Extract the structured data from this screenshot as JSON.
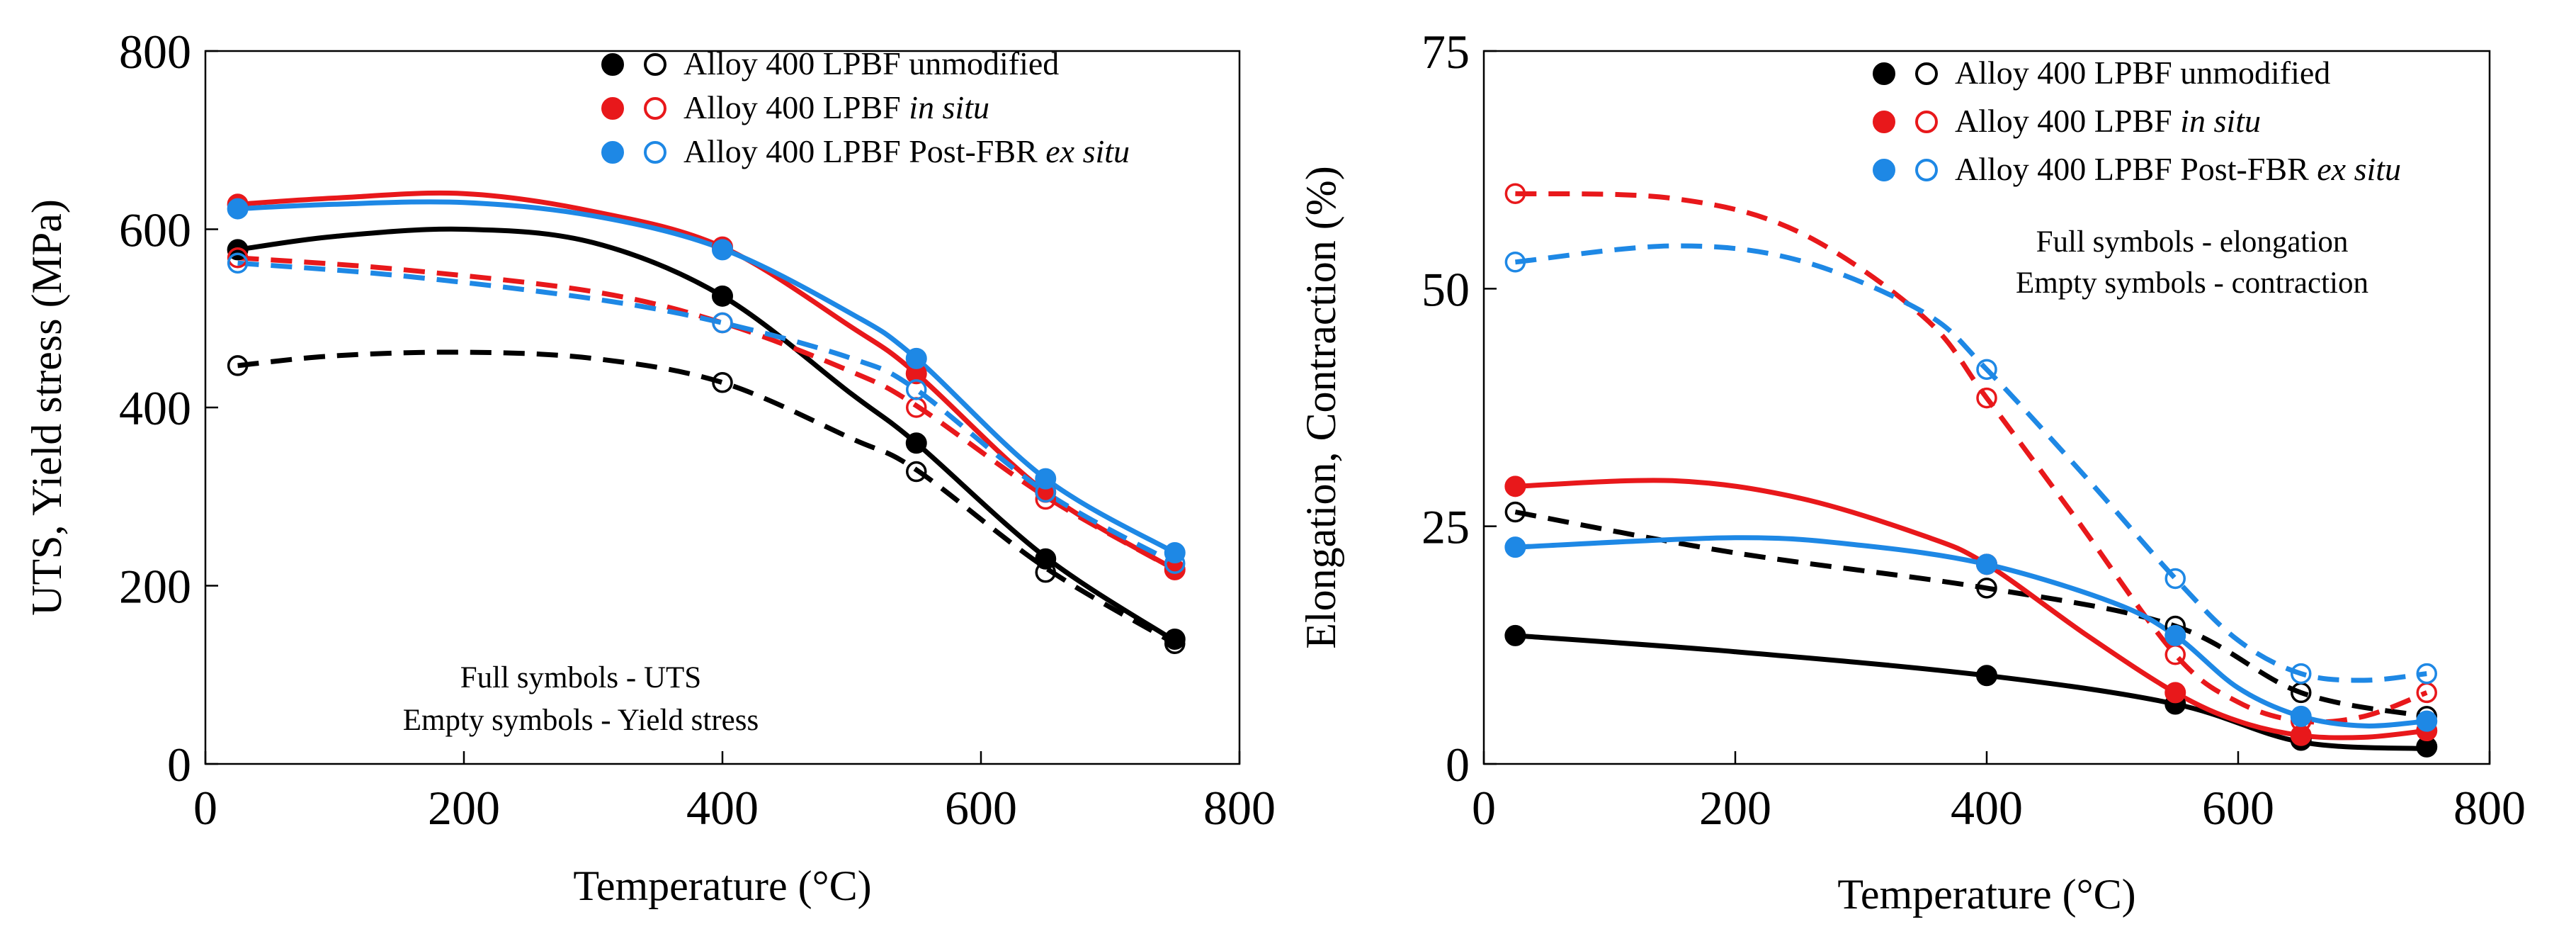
{
  "chart_data": [
    {
      "type": "line",
      "id": "strength",
      "xlabel": "Temperature (°C)",
      "ylabel": "UTS, Yield stress (MPa)",
      "xlim": [
        0,
        800
      ],
      "ylim": [
        0,
        800
      ],
      "xticks": [
        "0",
        "200",
        "400",
        "600",
        "800"
      ],
      "yticks": [
        "0",
        "200",
        "400",
        "600",
        "800"
      ],
      "xtick_values": [
        0,
        200,
        400,
        600,
        800
      ],
      "ytick_values": [
        0,
        200,
        400,
        600,
        800
      ],
      "legend": [
        {
          "text": "Alloy 400 LPBF unmodified",
          "italic": "",
          "color": "#000000"
        },
        {
          "text": "Alloy 400 LPBF ",
          "italic": "in situ",
          "color": "#e8181b"
        },
        {
          "text": "Alloy 400 LPBF Post-FBR ",
          "italic": "ex situ",
          "color": "#1e88e5"
        }
      ],
      "notes": [
        "Full symbols - UTS",
        "Empty symbols - Yield stress"
      ],
      "series": [
        {
          "name": "unmodified UTS",
          "color": "#000000",
          "filled": true,
          "dashed": false,
          "x": [
            25,
            400,
            550,
            650,
            750
          ],
          "y": [
            577,
            525,
            360,
            230,
            140
          ],
          "curve": [
            [
              25,
              577
            ],
            [
              100,
              592
            ],
            [
              200,
              600
            ],
            [
              300,
              585
            ],
            [
              400,
              525
            ],
            [
              500,
              415
            ],
            [
              550,
              360
            ],
            [
              650,
              232
            ],
            [
              750,
              138
            ]
          ]
        },
        {
          "name": "unmodified Yield",
          "color": "#000000",
          "filled": false,
          "dashed": true,
          "x": [
            25,
            400,
            550,
            650,
            750
          ],
          "y": [
            447,
            428,
            328,
            215,
            135
          ],
          "curve": [
            [
              25,
              447
            ],
            [
              100,
              458
            ],
            [
              200,
              462
            ],
            [
              300,
              455
            ],
            [
              400,
              428
            ],
            [
              500,
              365
            ],
            [
              550,
              330
            ],
            [
              650,
              220
            ],
            [
              750,
              135
            ]
          ]
        },
        {
          "name": "in situ UTS",
          "color": "#e8181b",
          "filled": true,
          "dashed": false,
          "x": [
            25,
            400,
            550,
            650,
            750
          ],
          "y": [
            628,
            580,
            438,
            305,
            218
          ],
          "curve": [
            [
              25,
              628
            ],
            [
              100,
              635
            ],
            [
              200,
              640
            ],
            [
              300,
              620
            ],
            [
              400,
              580
            ],
            [
              500,
              490
            ],
            [
              550,
              438
            ],
            [
              650,
              305
            ],
            [
              750,
              218
            ]
          ]
        },
        {
          "name": "in situ Yield",
          "color": "#e8181b",
          "filled": false,
          "dashed": true,
          "x": [
            25,
            400,
            550,
            650,
            750
          ],
          "y": [
            568,
            495,
            400,
            297,
            218
          ],
          "curve": [
            [
              25,
              568
            ],
            [
              150,
              555
            ],
            [
              300,
              530
            ],
            [
              400,
              495
            ],
            [
              500,
              440
            ],
            [
              550,
              402
            ],
            [
              650,
              300
            ],
            [
              750,
              218
            ]
          ]
        },
        {
          "name": "ex situ UTS",
          "color": "#1e88e5",
          "filled": true,
          "dashed": false,
          "x": [
            25,
            400,
            550,
            650,
            750
          ],
          "y": [
            623,
            577,
            455,
            320,
            237
          ],
          "curve": [
            [
              25,
              623
            ],
            [
              100,
              628
            ],
            [
              200,
              630
            ],
            [
              300,
              615
            ],
            [
              400,
              578
            ],
            [
              500,
              505
            ],
            [
              550,
              455
            ],
            [
              650,
              320
            ],
            [
              750,
              237
            ]
          ]
        },
        {
          "name": "ex situ Yield",
          "color": "#1e88e5",
          "filled": false,
          "dashed": true,
          "x": [
            25,
            400,
            550,
            650,
            750
          ],
          "y": [
            562,
            495,
            420,
            305,
            225
          ],
          "curve": [
            [
              25,
              562
            ],
            [
              150,
              548
            ],
            [
              300,
              522
            ],
            [
              400,
              495
            ],
            [
              500,
              455
            ],
            [
              550,
              420
            ],
            [
              650,
              305
            ],
            [
              750,
              225
            ]
          ]
        }
      ]
    },
    {
      "type": "line",
      "id": "ductility",
      "xlabel": "Temperature (°C)",
      "ylabel": "Elongation, Contraction (%)",
      "xlim": [
        0,
        800
      ],
      "ylim": [
        0,
        75
      ],
      "xticks": [
        "0",
        "200",
        "400",
        "600",
        "800"
      ],
      "yticks": [
        "0",
        "25",
        "50",
        "75"
      ],
      "xtick_values": [
        0,
        200,
        400,
        600,
        800
      ],
      "ytick_values": [
        0,
        25,
        50,
        75
      ],
      "legend": [
        {
          "text": "Alloy 400 LPBF unmodified",
          "italic": "",
          "color": "#000000"
        },
        {
          "text": "Alloy 400 LPBF ",
          "italic": "in situ",
          "color": "#e8181b"
        },
        {
          "text": "Alloy 400 LPBF Post-FBR ",
          "italic": "ex situ",
          "color": "#1e88e5"
        }
      ],
      "notes": [
        "Full symbols - elongation",
        "Empty symbols - contraction"
      ],
      "series": [
        {
          "name": "unmodified elongation",
          "color": "#000000",
          "filled": true,
          "dashed": false,
          "x": [
            25,
            400,
            550,
            650,
            750
          ],
          "y": [
            13.5,
            9.3,
            6.3,
            2.5,
            1.8
          ],
          "curve": [
            [
              25,
              13.5
            ],
            [
              200,
              11.8
            ],
            [
              400,
              9.3
            ],
            [
              550,
              6.3
            ],
            [
              650,
              2.3
            ],
            [
              750,
              1.6
            ]
          ]
        },
        {
          "name": "unmodified contraction",
          "color": "#000000",
          "filled": false,
          "dashed": true,
          "x": [
            25,
            400,
            550,
            650,
            750
          ],
          "y": [
            26.5,
            18.5,
            14.5,
            7.5,
            5.0
          ],
          "curve": [
            [
              25,
              26.5
            ],
            [
              200,
              22.2
            ],
            [
              400,
              18.5
            ],
            [
              550,
              14.5
            ],
            [
              650,
              7.5
            ],
            [
              750,
              5.0
            ]
          ]
        },
        {
          "name": "in situ elongation",
          "color": "#e8181b",
          "filled": true,
          "dashed": false,
          "x": [
            25,
            400,
            550,
            650,
            750
          ],
          "y": [
            29.2,
            21.0,
            7.5,
            3.0,
            3.5
          ],
          "curve": [
            [
              25,
              29.2
            ],
            [
              150,
              29.8
            ],
            [
              250,
              28.0
            ],
            [
              350,
              24.0
            ],
            [
              400,
              21.0
            ],
            [
              480,
              13.5
            ],
            [
              550,
              7.5
            ],
            [
              600,
              4.5
            ],
            [
              650,
              3.0
            ],
            [
              700,
              2.8
            ],
            [
              750,
              3.5
            ]
          ]
        },
        {
          "name": "in situ contraction",
          "color": "#e8181b",
          "filled": false,
          "dashed": true,
          "x": [
            25,
            400,
            550,
            650,
            750
          ],
          "y": [
            60.0,
            38.5,
            11.5,
            4.5,
            7.5
          ],
          "curve": [
            [
              25,
              60.0
            ],
            [
              150,
              59.5
            ],
            [
              250,
              56.0
            ],
            [
              350,
              47.0
            ],
            [
              400,
              38.5
            ],
            [
              470,
              26.0
            ],
            [
              550,
              11.5
            ],
            [
              600,
              6.5
            ],
            [
              650,
              4.5
            ],
            [
              700,
              5.0
            ],
            [
              750,
              7.5
            ]
          ]
        },
        {
          "name": "ex situ elongation",
          "color": "#1e88e5",
          "filled": true,
          "dashed": false,
          "x": [
            25,
            400,
            550,
            650,
            750
          ],
          "y": [
            22.8,
            21.0,
            13.5,
            5.0,
            4.5
          ],
          "curve": [
            [
              25,
              22.8
            ],
            [
              200,
              23.8
            ],
            [
              300,
              23.0
            ],
            [
              400,
              21.0
            ],
            [
              500,
              17.0
            ],
            [
              550,
              13.5
            ],
            [
              600,
              8.0
            ],
            [
              650,
              5.0
            ],
            [
              700,
              4.0
            ],
            [
              750,
              4.5
            ]
          ]
        },
        {
          "name": "ex situ contraction",
          "color": "#1e88e5",
          "filled": false,
          "dashed": true,
          "x": [
            25,
            400,
            550,
            650,
            750
          ],
          "y": [
            52.8,
            41.5,
            19.5,
            9.5,
            9.5
          ],
          "curve": [
            [
              25,
              52.8
            ],
            [
              150,
              54.5
            ],
            [
              250,
              53.0
            ],
            [
              350,
              47.5
            ],
            [
              400,
              41.5
            ],
            [
              480,
              30.0
            ],
            [
              550,
              19.5
            ],
            [
              600,
              13.0
            ],
            [
              650,
              9.5
            ],
            [
              700,
              8.8
            ],
            [
              750,
              9.5
            ]
          ]
        }
      ]
    }
  ]
}
